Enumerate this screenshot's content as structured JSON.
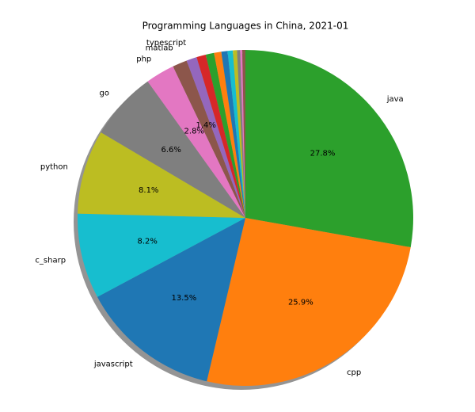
{
  "chart_data": {
    "type": "pie",
    "title": "Programming Languages in China, 2021-01",
    "categories": [
      "java",
      "cpp",
      "javascript",
      "c_sharp",
      "python",
      "go",
      "php",
      "matlab",
      "typescript",
      null,
      null,
      null,
      null,
      null,
      null,
      null,
      null,
      null
    ],
    "values": [
      27.8,
      25.9,
      13.5,
      8.2,
      8.1,
      6.6,
      2.8,
      1.4,
      1.0,
      0.9,
      0.8,
      0.7,
      0.6,
      0.5,
      0.4,
      0.3,
      0.2,
      0.3
    ],
    "value_labels": [
      "27.8%",
      "25.9%",
      "13.5%",
      "8.2%",
      "8.1%",
      "6.6%",
      "2.8%",
      "1.4%",
      null,
      null,
      null,
      null,
      null,
      null,
      null,
      null,
      null,
      null
    ],
    "colors": [
      "#2ca02c",
      "#ff7f0e",
      "#1f77b4",
      "#17becf",
      "#bcbd22",
      "#7f7f7f",
      "#e377c2",
      "#8c564b",
      "#9467bd",
      "#d62728",
      "#2ca02c",
      "#ff7f0e",
      "#1f77b4",
      "#17becf",
      "#bcbd22",
      "#7f7f7f",
      "#e377c2",
      "#8c564b"
    ]
  }
}
